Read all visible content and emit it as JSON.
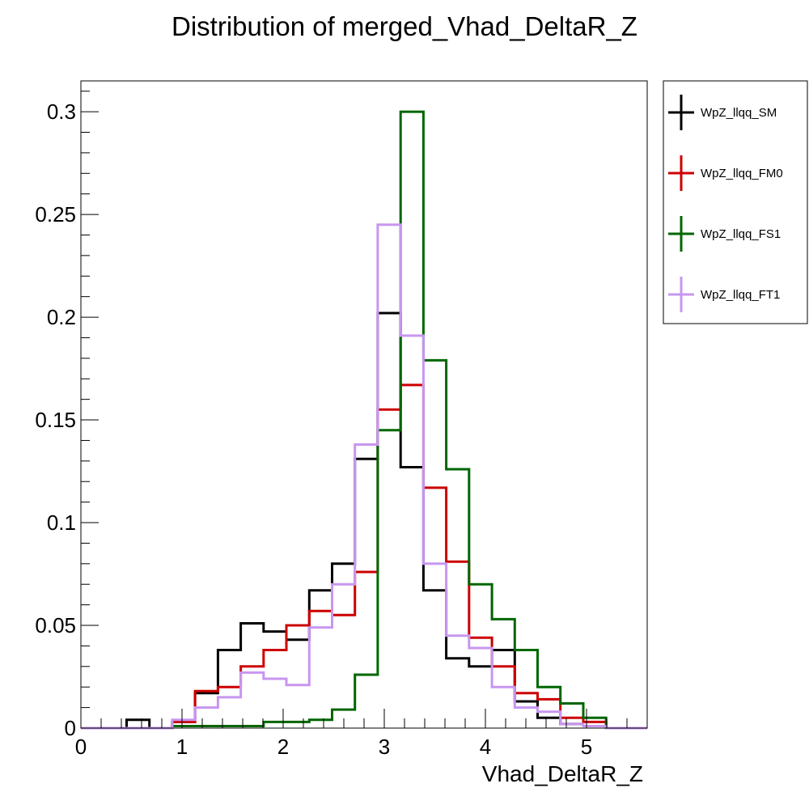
{
  "chart_data": {
    "type": "histogram",
    "title": "Distribution of merged_Vhad_DeltaR_Z",
    "xlabel": "Vhad_DeltaR_Z",
    "ylabel": "",
    "xlim": [
      0,
      5.6
    ],
    "ylim": [
      0,
      0.315
    ],
    "bin_edges": [
      0,
      0.2258,
      0.4516,
      0.6774,
      0.9032,
      1.129,
      1.3548,
      1.5806,
      1.8065,
      2.0323,
      2.2581,
      2.4839,
      2.7097,
      2.9355,
      3.1613,
      3.3871,
      3.6129,
      3.8387,
      4.0645,
      4.2903,
      4.5161,
      4.7419,
      4.9677,
      5.1935,
      5.4194,
      5.6452
    ],
    "x_ticks": [
      0,
      1,
      2,
      3,
      4,
      5
    ],
    "x_tick_labels": [
      "0",
      "1",
      "2",
      "3",
      "4",
      "5"
    ],
    "y_ticks": [
      0,
      0.05,
      0.1,
      0.15,
      0.2,
      0.25,
      0.3
    ],
    "y_tick_labels": [
      "0",
      "0.05",
      "0.1",
      "0.15",
      "0.2",
      "0.25",
      "0.3"
    ],
    "legend_position": "right-outside-top",
    "series": [
      {
        "name": "WpZ_llqq_SM",
        "color": "#000000",
        "values": [
          0,
          0,
          0.004,
          0,
          0.003,
          0.017,
          0.038,
          0.051,
          0.047,
          0.043,
          0.067,
          0.08,
          0.131,
          0.202,
          0.127,
          0.067,
          0.034,
          0.03,
          0.038,
          0.013,
          0.005,
          0.002,
          0.001,
          0,
          0
        ]
      },
      {
        "name": "WpZ_llqq_FM0",
        "color": "#cc0000",
        "values": [
          0,
          0,
          0,
          0,
          0.003,
          0.018,
          0.02,
          0.03,
          0.038,
          0.05,
          0.057,
          0.055,
          0.076,
          0.155,
          0.167,
          0.117,
          0.081,
          0.044,
          0.03,
          0.017,
          0.014,
          0.005,
          0.003,
          0,
          0
        ]
      },
      {
        "name": "WpZ_llqq_FS1",
        "color": "#006600",
        "values": [
          0,
          0,
          0,
          0,
          0.001,
          0.001,
          0.001,
          0.001,
          0.003,
          0.003,
          0.004,
          0.009,
          0.026,
          0.145,
          0.3,
          0.179,
          0.126,
          0.07,
          0.053,
          0.038,
          0.02,
          0.012,
          0.005,
          0,
          0
        ]
      },
      {
        "name": "WpZ_llqq_FT1",
        "color": "#c896f0",
        "values": [
          0,
          0,
          0,
          0,
          0.004,
          0.01,
          0.015,
          0.027,
          0.024,
          0.021,
          0.049,
          0.07,
          0.138,
          0.245,
          0.191,
          0.08,
          0.045,
          0.039,
          0.02,
          0.01,
          0.008,
          0.002,
          0.001,
          0,
          0
        ]
      }
    ]
  }
}
